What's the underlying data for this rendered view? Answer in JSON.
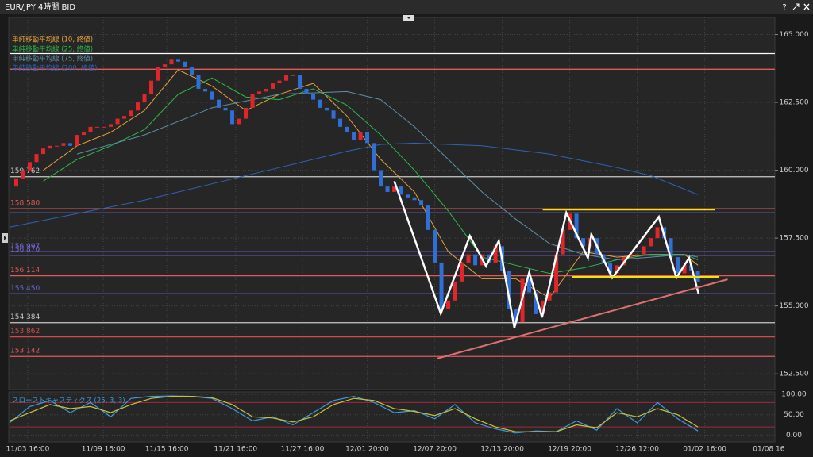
{
  "window": {
    "title": "EUR/JPY 4時間 BID",
    "help": "?"
  },
  "chart_data": [
    {
      "type": "candlestick",
      "up_color": "#e0262b",
      "down_color": "#2f6fd6",
      "x": [
        0,
        1,
        2,
        3,
        4,
        5,
        6,
        7,
        8,
        9,
        10,
        11,
        12,
        13,
        14,
        15,
        16,
        17,
        18,
        19,
        20,
        21,
        22,
        23,
        24,
        25,
        26,
        27,
        28,
        29,
        30,
        31,
        32,
        33,
        34,
        35,
        36,
        37,
        38,
        39,
        40,
        41,
        42,
        43,
        44,
        45,
        46,
        47,
        48,
        49,
        50,
        51,
        52,
        53,
        54,
        55,
        56,
        57,
        58,
        59,
        60,
        61,
        62,
        63,
        64,
        65,
        66,
        67,
        68,
        69,
        70,
        71,
        72,
        73,
        74,
        75,
        76,
        77,
        78,
        79,
        80,
        81,
        82,
        83,
        84,
        85,
        86,
        87,
        88,
        89,
        90,
        91,
        92,
        93,
        94,
        95,
        96,
        97,
        98,
        99,
        100,
        101,
        102
      ],
      "values": [
        159.4,
        159.7,
        160.0,
        160.3,
        160.6,
        160.8,
        160.9,
        160.9,
        161.0,
        160.9,
        161.3,
        161.4,
        161.6,
        161.6,
        161.6,
        161.7,
        161.9,
        162.0,
        162.2,
        162.5,
        162.8,
        163.3,
        163.8,
        163.9,
        164.1,
        164.0,
        163.8,
        163.5,
        163.0,
        162.9,
        162.6,
        162.3,
        162.2,
        161.7,
        161.9,
        162.3,
        162.8,
        162.9,
        163.0,
        163.2,
        163.3,
        163.5,
        163.5,
        163.0,
        162.8,
        162.6,
        162.3,
        162.2,
        161.9,
        161.6,
        161.4,
        161.1,
        161.4,
        161.0,
        160.0,
        159.4,
        159.2,
        159.4,
        159.1,
        159.0,
        158.9,
        158.7,
        157.8,
        156.6,
        154.9,
        155.2,
        155.9,
        156.6,
        156.9,
        156.5,
        156.9,
        156.6,
        157.2,
        156.3,
        154.9,
        154.4,
        156.0,
        155.5,
        154.7,
        155.2,
        155.5,
        156.9,
        157.8,
        158.4,
        157.5,
        157.2,
        157.5,
        156.9,
        156.6,
        156.2,
        156.5,
        156.8,
        156.9,
        156.9,
        157.2,
        157.5,
        157.9,
        157.5,
        156.8,
        156.2,
        156.5,
        156.3,
        155.9
      ],
      "series": [
        {
          "name": "単純移動平均線 (10, 終値)",
          "color": "#e8a23a",
          "x": [
            5,
            10,
            15,
            20,
            25,
            30,
            35,
            40,
            45,
            50,
            55,
            60,
            65,
            70,
            75,
            80,
            85,
            90,
            95,
            100,
            102
          ],
          "values": [
            160.0,
            160.9,
            161.4,
            162.2,
            163.7,
            163.1,
            162.2,
            162.8,
            163.2,
            162.0,
            160.4,
            159.2,
            157.0,
            156.0,
            156.0,
            155.3,
            157.0,
            156.8,
            156.9,
            156.9,
            156.5
          ]
        },
        {
          "name": "単純移動平均線 (25, 終値)",
          "color": "#2fb84a",
          "x": [
            5,
            10,
            15,
            20,
            25,
            30,
            35,
            40,
            45,
            50,
            55,
            60,
            65,
            70,
            75,
            80,
            85,
            90,
            95,
            100,
            102
          ],
          "values": [
            159.6,
            160.4,
            160.9,
            161.5,
            162.8,
            163.4,
            162.7,
            162.6,
            163.0,
            162.4,
            161.3,
            160.0,
            158.5,
            156.8,
            156.5,
            156.2,
            156.4,
            156.7,
            156.9,
            156.9,
            156.7
          ]
        },
        {
          "name": "単純移動平均線 (75, 終値)",
          "color": "#5d8fa8",
          "x": [
            10,
            20,
            30,
            40,
            50,
            55,
            60,
            65,
            70,
            75,
            80,
            85,
            90,
            95,
            100,
            102
          ],
          "values": [
            160.6,
            161.3,
            162.3,
            162.8,
            162.9,
            162.6,
            161.6,
            160.4,
            159.2,
            158.2,
            157.3,
            156.9,
            156.7,
            156.8,
            156.9,
            156.8
          ]
        },
        {
          "name": "単純移動平均線 (200, 終値)",
          "color": "#2e63b8",
          "x": [
            0,
            10,
            20,
            30,
            40,
            50,
            55,
            60,
            70,
            80,
            90,
            95,
            100,
            102
          ],
          "values": [
            157.9,
            158.4,
            158.9,
            159.5,
            160.1,
            160.7,
            160.95,
            161.0,
            160.9,
            160.6,
            160.1,
            159.8,
            159.3,
            159.1
          ]
        }
      ],
      "horizontal_lines": [
        {
          "value": 164.3,
          "color": "#ffffff"
        },
        {
          "value": 163.72,
          "color": "#e05a5a"
        },
        {
          "value": 159.762,
          "label": "159.762",
          "color": "#c8c8c8"
        },
        {
          "value": 158.58,
          "label": "158.580",
          "color": "#e05a5a"
        },
        {
          "value": 158.43,
          "color": "#6a6ad0"
        },
        {
          "value": 156.997,
          "label": "156.997",
          "color": "#7a6ae0"
        },
        {
          "value": 156.87,
          "label": "156.870",
          "color": "#7a6ae0"
        },
        {
          "value": 156.114,
          "label": "156.114",
          "color": "#e05a5a"
        },
        {
          "value": 155.45,
          "label": "155.450",
          "color": "#6a6ad0"
        },
        {
          "value": 154.384,
          "label": "154.384",
          "color": "#c8c8c8"
        },
        {
          "value": 153.862,
          "label": "153.862",
          "color": "#d24a4a"
        },
        {
          "value": 153.142,
          "label": "153.142",
          "color": "#e05a5a"
        }
      ],
      "drawings": [
        {
          "color": "#ffffff",
          "points": [
            [
              57,
              159.6
            ],
            [
              63.9,
              154.72
            ],
            [
              68.2,
              157.58
            ],
            [
              70.6,
              156.47
            ],
            [
              72.5,
              157.4
            ],
            [
              74.8,
              154.2
            ],
            [
              77,
              156.24
            ],
            [
              78.9,
              154.58
            ],
            [
              82.5,
              158.43
            ],
            [
              85.7,
              156.77
            ],
            [
              86.2,
              157.64
            ],
            [
              89.3,
              156.04
            ],
            [
              96.2,
              158.28
            ],
            [
              98.8,
              156.04
            ],
            [
              100.7,
              156.77
            ],
            [
              102.1,
              155.45
            ]
          ]
        },
        {
          "color": "#f2e600",
          "points": [
            [
              79,
              158.55
            ],
            [
              104.5,
              158.55
            ]
          ]
        },
        {
          "color": "#f2e600",
          "points": [
            [
              83.3,
              156.07
            ],
            [
              105.1,
              156.07
            ]
          ]
        },
        {
          "color": "#e07070",
          "points": [
            [
              63.3,
              153.06
            ],
            [
              106.4,
              155.98
            ]
          ]
        }
      ],
      "xlim": [
        0,
        113.4
      ],
      "xticks": [
        {
          "value": 2.7,
          "label": "11/03 16:00"
        },
        {
          "value": 13.9,
          "label": "11/09 16:00"
        },
        {
          "value": 23.3,
          "label": "11/15 16:00"
        },
        {
          "value": 33.5,
          "label": "11/21 16:00"
        },
        {
          "value": 43.4,
          "label": "11/27 16:00"
        },
        {
          "value": 53,
          "label": "12/01 20:00"
        },
        {
          "value": 63,
          "label": "12/07 20:00"
        },
        {
          "value": 73,
          "label": "12/13 20:00"
        },
        {
          "value": 83,
          "label": "12/19 20:00"
        },
        {
          "value": 93,
          "label": "12/26 12:00"
        },
        {
          "value": 103,
          "label": "01/02 16:00"
        },
        {
          "value": 112.5,
          "label": "01/08 16"
        }
      ],
      "ylim": [
        151.95,
        165.6
      ],
      "yticks": [
        {
          "value": 152.5,
          "label": "152.500"
        },
        {
          "value": 155,
          "label": "155.000"
        },
        {
          "value": 157.5,
          "label": "157.500"
        },
        {
          "value": 160,
          "label": "160.000"
        },
        {
          "value": 162.5,
          "label": "162.500"
        },
        {
          "value": 165,
          "label": "165.000"
        }
      ],
      "grid": true
    },
    {
      "type": "line",
      "title": "スローストキャスティクス (25, 3, 3)",
      "xlim": [
        0,
        113.4
      ],
      "ylim": [
        -15,
        106
      ],
      "yticks": [
        {
          "value": 0,
          "label": "0.00"
        },
        {
          "value": 50,
          "label": "50.00"
        },
        {
          "value": 100,
          "label": "100.00"
        }
      ],
      "levels": [
        {
          "value": 80,
          "color": "#a0283c"
        },
        {
          "value": 20,
          "color": "#a0283c"
        }
      ],
      "x": [
        0,
        3,
        6,
        9,
        12,
        15,
        18,
        21,
        24,
        27,
        30,
        33,
        36,
        39,
        42,
        45,
        48,
        51,
        54,
        57,
        60,
        63,
        66,
        69,
        72,
        75,
        78,
        81,
        84,
        87,
        90,
        93,
        96,
        99,
        102
      ],
      "series": [
        {
          "color": "#3d9be0",
          "values": [
            30,
            70,
            85,
            55,
            80,
            45,
            90,
            95,
            96,
            95,
            90,
            65,
            35,
            45,
            25,
            55,
            85,
            95,
            80,
            55,
            60,
            40,
            75,
            30,
            15,
            5,
            10,
            8,
            35,
            12,
            65,
            30,
            80,
            40,
            10
          ]
        },
        {
          "color": "#c9c23a",
          "values": [
            35,
            55,
            75,
            65,
            70,
            55,
            75,
            90,
            95,
            95,
            92,
            75,
            45,
            42,
            32,
            45,
            75,
            90,
            85,
            65,
            58,
            48,
            65,
            40,
            20,
            8,
            8,
            8,
            25,
            18,
            55,
            45,
            65,
            50,
            20
          ]
        }
      ],
      "grid": true
    }
  ]
}
